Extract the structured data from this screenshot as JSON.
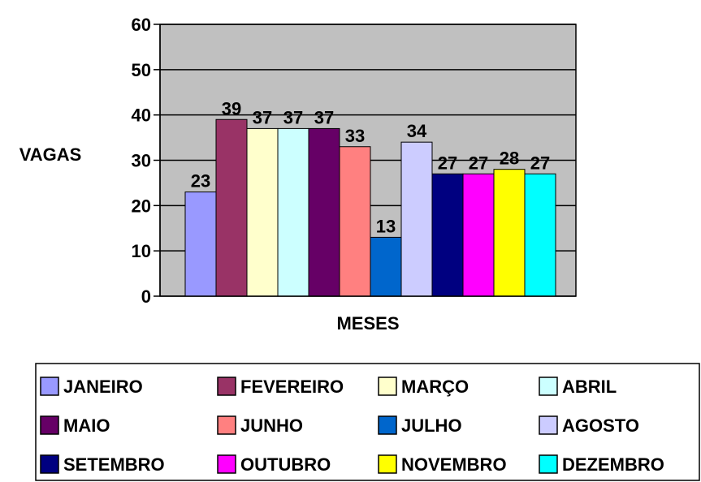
{
  "chart_data": {
    "type": "bar",
    "title": "",
    "xlabel": "MESES",
    "ylabel": "VAGAS",
    "ylim": [
      0,
      60
    ],
    "yticks": [
      0,
      10,
      20,
      30,
      40,
      50,
      60
    ],
    "grid": true,
    "legend_position": "bottom",
    "plot_background": "#c0c0c0",
    "series": [
      {
        "name": "JANEIRO",
        "value": 23,
        "color": "#9999ff"
      },
      {
        "name": "FEVEREIRO",
        "value": 39,
        "color": "#993366"
      },
      {
        "name": "MARÇO",
        "value": 37,
        "color": "#ffffcc"
      },
      {
        "name": "ABRIL",
        "value": 37,
        "color": "#ccffff"
      },
      {
        "name": "MAIO",
        "value": 37,
        "color": "#660066"
      },
      {
        "name": "JUNHO",
        "value": 33,
        "color": "#ff8080"
      },
      {
        "name": "JULHO",
        "value": 13,
        "color": "#0066cc"
      },
      {
        "name": "AGOSTO",
        "value": 34,
        "color": "#ccccff"
      },
      {
        "name": "SETEMBRO",
        "value": 27,
        "color": "#000080"
      },
      {
        "name": "OUTUBRO",
        "value": 27,
        "color": "#ff00ff"
      },
      {
        "name": "NOVEMBRO",
        "value": 28,
        "color": "#ffff00"
      },
      {
        "name": "DEZEMBRO",
        "value": 27,
        "color": "#00ffff"
      }
    ]
  }
}
